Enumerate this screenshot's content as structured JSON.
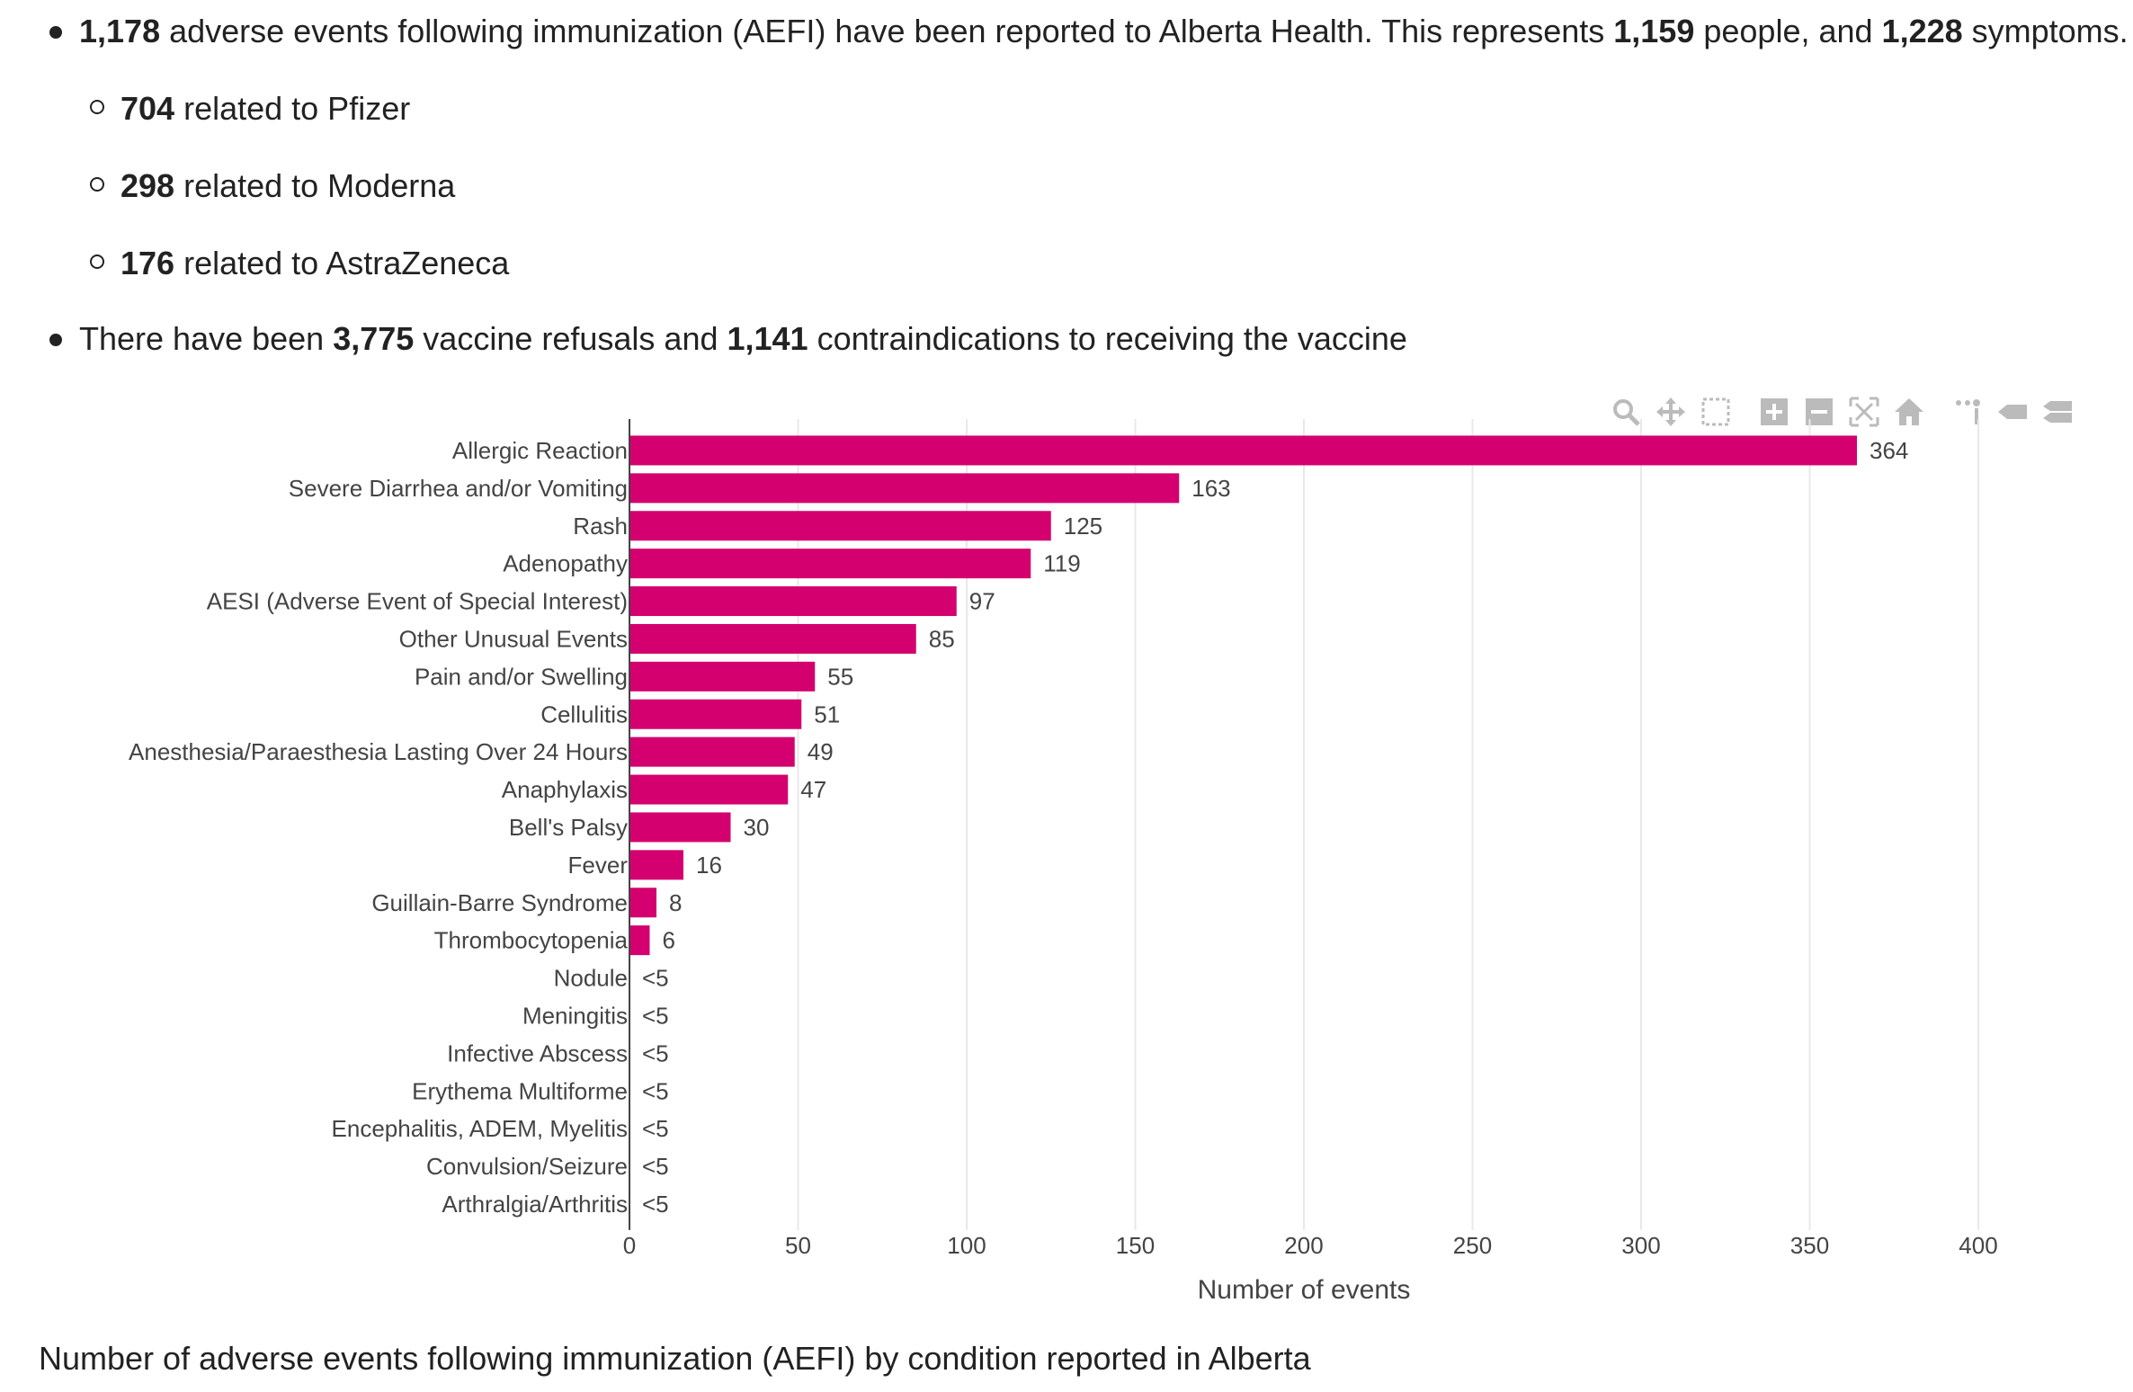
{
  "bullets": {
    "b1": {
      "n1": "1,178",
      "t1": " adverse events following immunization (AEFI) have been reported to Alberta Health. This represents ",
      "n2": "1,159",
      "t2": " people, and ",
      "n3": "1,228",
      "t3": " symptoms."
    },
    "sub": [
      {
        "n": "704",
        "t": " related to Pfizer"
      },
      {
        "n": "298",
        "t": " related to Moderna"
      },
      {
        "n": "176",
        "t": " related to AstraZeneca"
      }
    ],
    "b2": {
      "t1": "There have been ",
      "n1": "3,775",
      "t2": " vaccine refusals and ",
      "n2": "1,141",
      "t3": " contraindications to receiving the vaccine"
    }
  },
  "modebar": {
    "icons": [
      "zoom-icon",
      "pan-icon",
      "box-select-icon",
      "zoom-in-icon",
      "zoom-out-icon",
      "autoscale-icon",
      "reset-axes-icon",
      "toggle-spike-lines-icon",
      "hover-closest-icon",
      "hover-compare-icon"
    ]
  },
  "chart_data": {
    "type": "bar",
    "orientation": "horizontal",
    "categories": [
      "Allergic Reaction",
      "Severe Diarrhea and/or Vomiting",
      "Rash",
      "Adenopathy",
      "AESI (Adverse Event of Special Interest)",
      "Other Unusual Events",
      "Pain and/or Swelling",
      "Cellulitis",
      "Anesthesia/Paraesthesia Lasting Over 24 Hours",
      "Anaphylaxis",
      "Bell's Palsy",
      "Fever",
      "Guillain-Barre Syndrome",
      "Thrombocytopenia",
      "Nodule",
      "Meningitis",
      "Infective Abscess",
      "Erythema Multiforme",
      "Encephalitis, ADEM, Myelitis",
      "Convulsion/Seizure",
      "Arthralgia/Arthritis"
    ],
    "values": [
      364,
      163,
      125,
      119,
      97,
      85,
      55,
      51,
      49,
      47,
      30,
      16,
      8,
      6,
      null,
      null,
      null,
      null,
      null,
      null,
      null
    ],
    "labels": [
      "364",
      "163",
      "125",
      "119",
      "97",
      "85",
      "55",
      "51",
      "49",
      "47",
      "30",
      "16",
      "8",
      "6",
      "<5",
      "<5",
      "<5",
      "<5",
      "<5",
      "<5",
      "<5"
    ],
    "xticks": [
      0,
      50,
      100,
      150,
      200,
      250,
      300,
      350,
      400
    ],
    "xlim": [
      0,
      400
    ],
    "xlabel": "Number of events",
    "ylabel": "",
    "bar_color": "#d4006f",
    "grid": true
  },
  "caption": "Number of adverse events following immunization (AEFI) by condition reported in Alberta"
}
